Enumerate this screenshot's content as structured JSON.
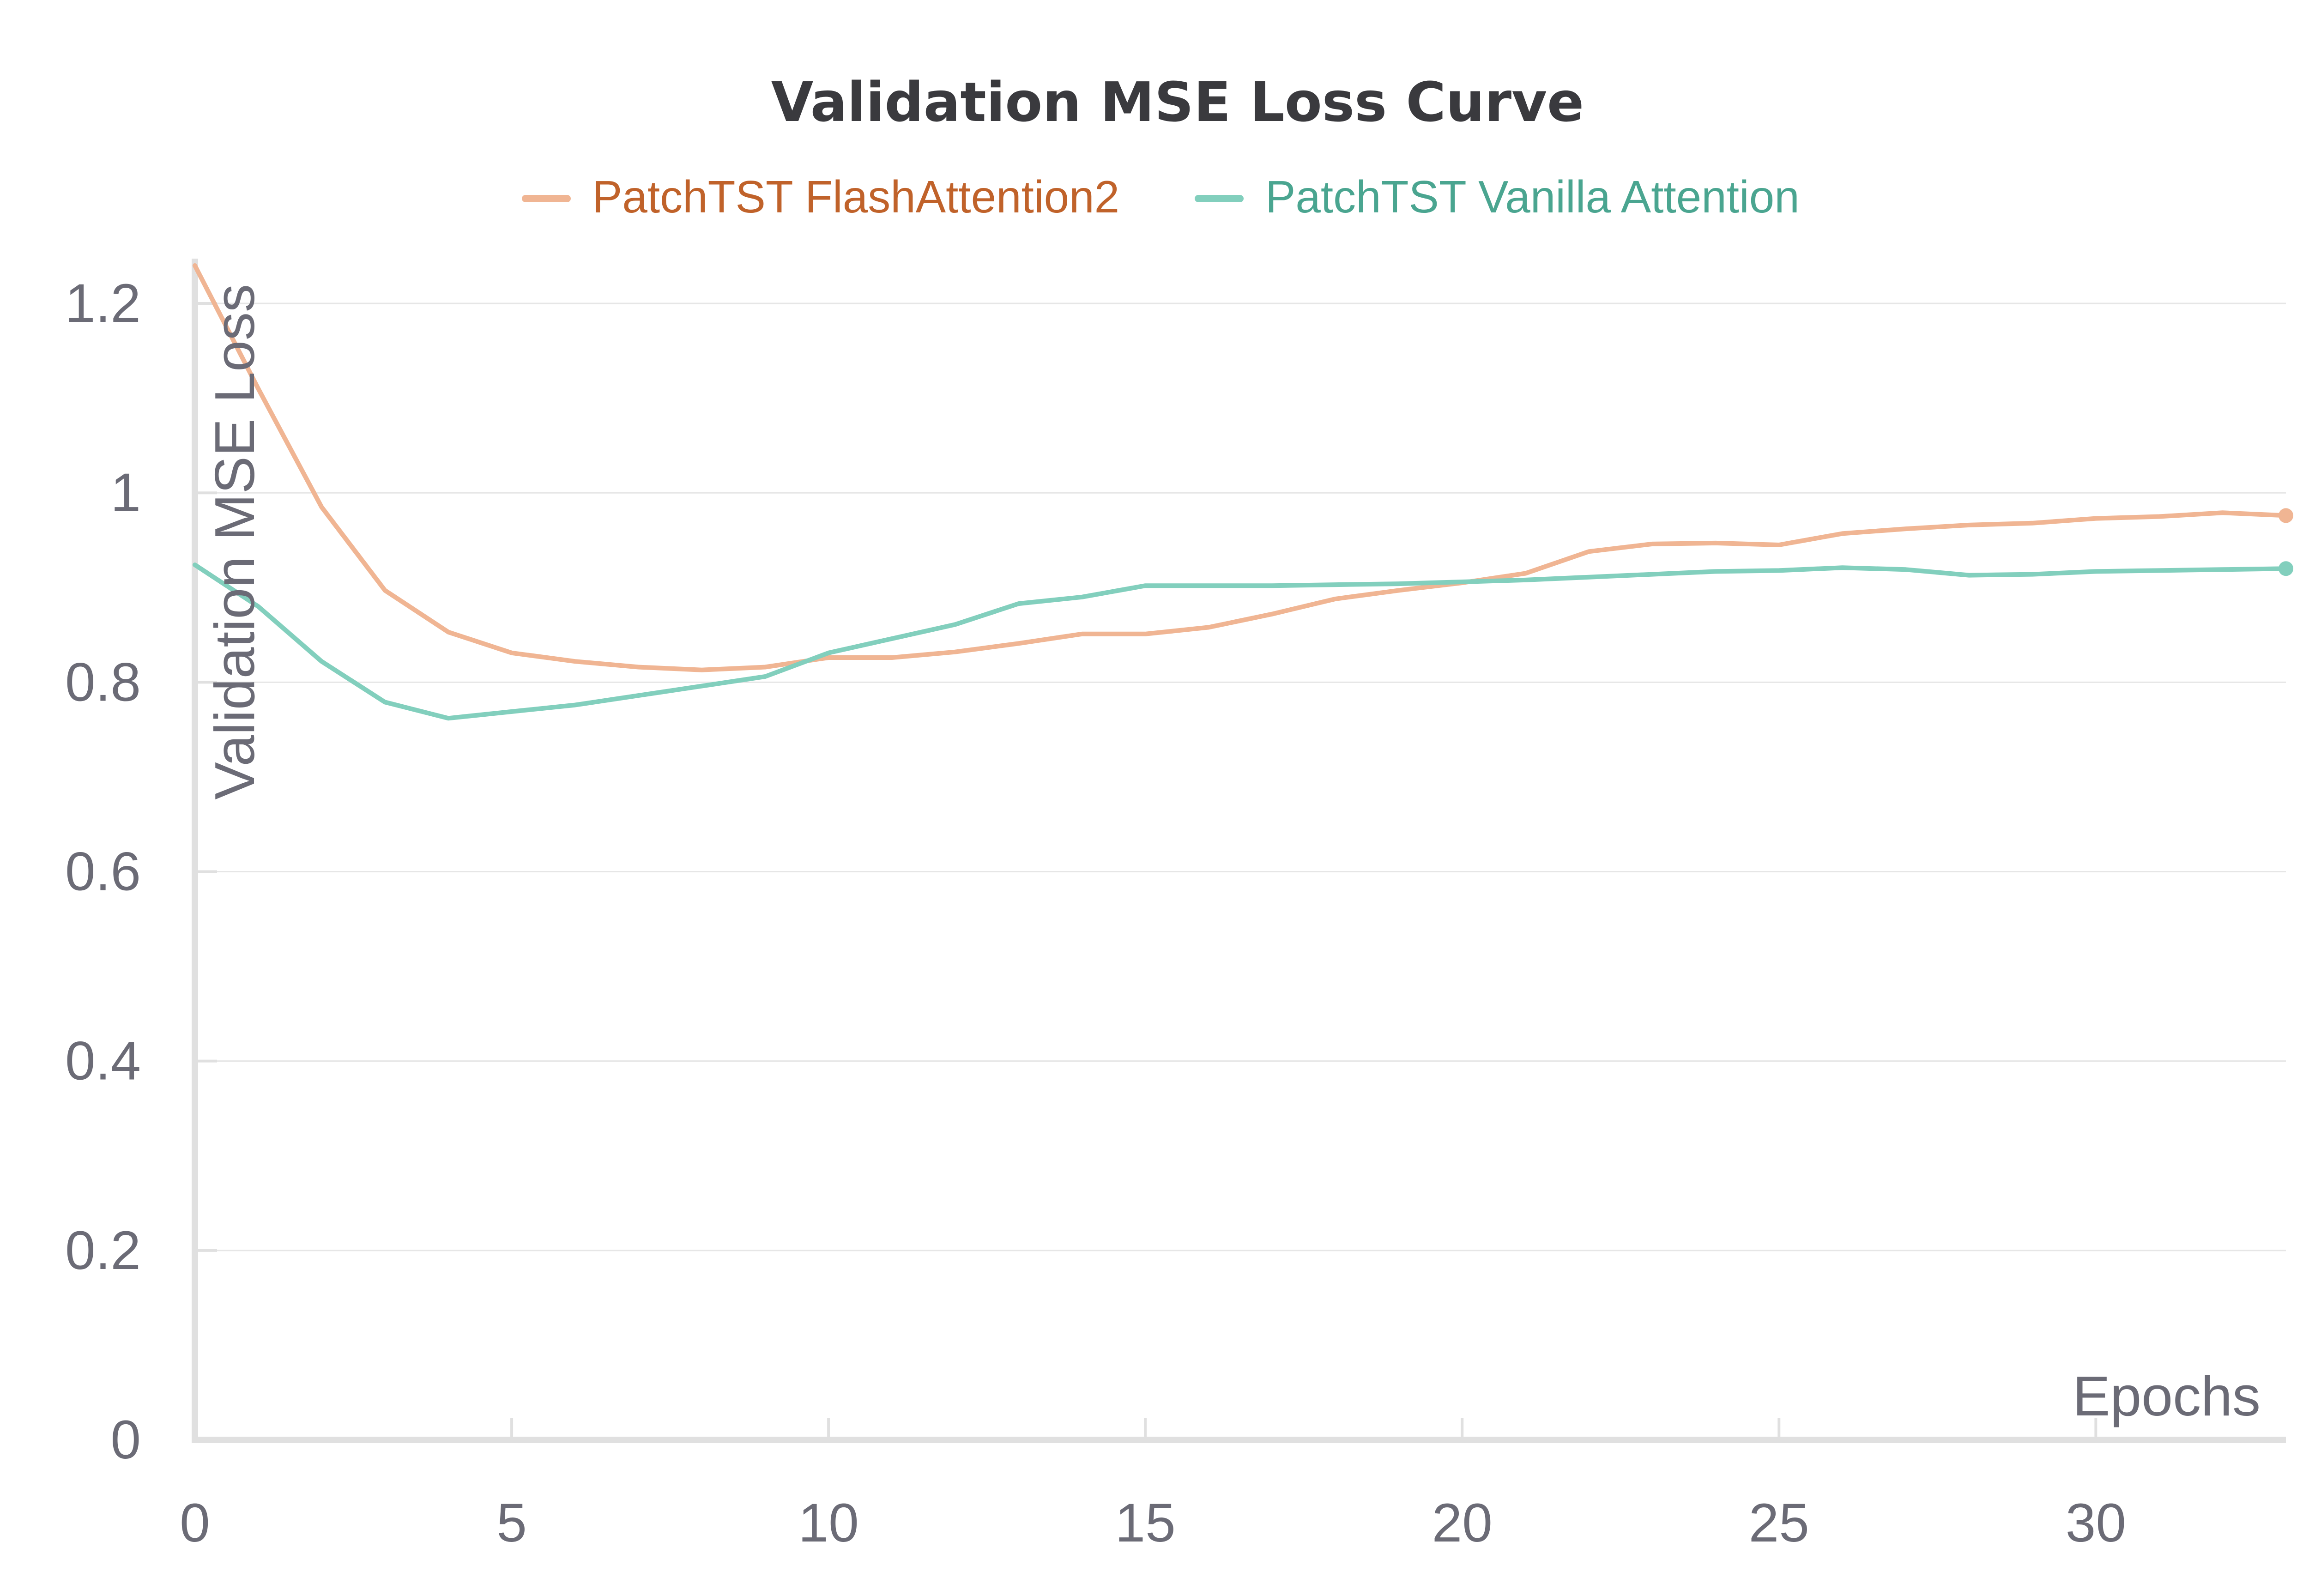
{
  "chart_data": {
    "type": "line",
    "title": "Validation MSE Loss Curve",
    "xlabel": "Epochs",
    "ylabel": "Validation MSE Loss",
    "xlim": [
      0,
      33
    ],
    "ylim": [
      0,
      1.24
    ],
    "xticks": [
      0,
      5,
      10,
      15,
      20,
      25,
      30
    ],
    "yticks": [
      0,
      0.2,
      0.4,
      0.6,
      0.8,
      1,
      1.2
    ],
    "ytick_labels": [
      "0",
      "0.2",
      "0.4",
      "0.6",
      "0.8",
      "1",
      "1.2"
    ],
    "grid": true,
    "legend_position": "top",
    "series": [
      {
        "name": "PatchTST FlashAttention2",
        "color": "#f0b593",
        "legend_text_color": "#c0622a",
        "x": [
          0,
          1,
          2,
          3,
          4,
          5,
          6,
          7,
          8,
          9,
          10,
          11,
          12,
          13,
          14,
          15,
          16,
          17,
          18,
          19,
          20,
          21,
          22,
          23,
          24,
          25,
          26,
          27,
          28,
          29,
          30,
          31,
          32,
          33
        ],
        "y": [
          1.24,
          1.11,
          0.985,
          0.897,
          0.853,
          0.831,
          0.822,
          0.816,
          0.813,
          0.816,
          0.826,
          0.826,
          0.832,
          0.841,
          0.851,
          0.851,
          0.858,
          0.872,
          0.888,
          0.897,
          0.905,
          0.915,
          0.938,
          0.946,
          0.947,
          0.945,
          0.957,
          0.962,
          0.966,
          0.968,
          0.973,
          0.975,
          0.979,
          0.976
        ]
      },
      {
        "name": "PatchTST Vanilla Attention",
        "color": "#82cfbd",
        "legend_text_color": "#4aa590",
        "x": [
          0,
          1,
          2,
          3,
          4,
          5,
          6,
          7,
          8,
          9,
          10,
          11,
          12,
          13,
          14,
          15,
          16,
          17,
          18,
          19,
          20,
          21,
          22,
          23,
          24,
          25,
          26,
          27,
          28,
          29,
          30,
          31,
          32,
          33
        ],
        "y": [
          0.924,
          0.88,
          0.822,
          0.779,
          0.762,
          0.769,
          0.776,
          0.786,
          0.796,
          0.806,
          0.831,
          0.846,
          0.861,
          0.883,
          0.89,
          0.902,
          0.902,
          0.902,
          0.903,
          0.904,
          0.906,
          0.908,
          0.911,
          0.914,
          0.917,
          0.918,
          0.921,
          0.919,
          0.913,
          0.914,
          0.917,
          0.918,
          0.919,
          0.92
        ]
      }
    ]
  }
}
